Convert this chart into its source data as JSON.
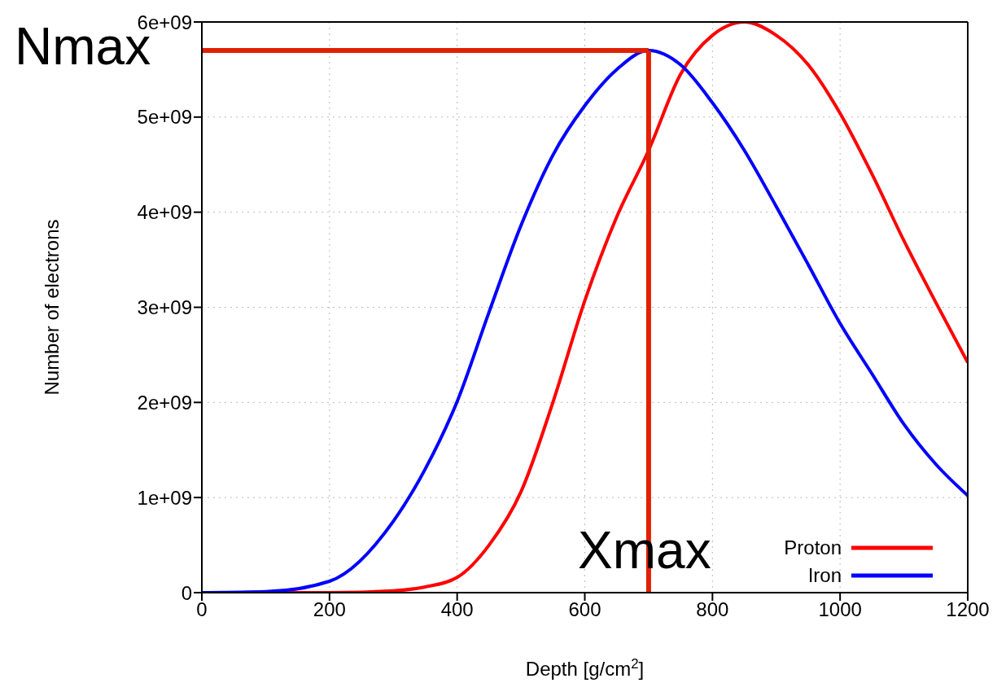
{
  "chart_data": {
    "type": "line",
    "xlabel": "Depth [g/cm$^{2}$]",
    "ylabel": "Number of electrons",
    "x": [
      0,
      100,
      200,
      300,
      350,
      400,
      450,
      500,
      550,
      600,
      650,
      700,
      750,
      800,
      850,
      900,
      950,
      1000,
      1050,
      1100,
      1150,
      1200
    ],
    "series": [
      {
        "name": "Proton",
        "color": "#ff0000",
        "values": [
          0,
          0,
          0,
          20000000.0,
          60000000.0,
          160000000.0,
          500000000.0,
          1060000000.0,
          2000000000.0,
          3070000000.0,
          3950000000.0,
          4650000000.0,
          5450000000.0,
          5860000000.0,
          6000000000.0,
          5860000000.0,
          5550000000.0,
          5040000000.0,
          4400000000.0,
          3700000000.0,
          3050000000.0,
          2420000000.0
        ]
      },
      {
        "name": "Iron",
        "color": "#0000ff",
        "values": [
          0,
          10000000.0,
          120000000.0,
          750000000.0,
          1300000000.0,
          2010000000.0,
          2950000000.0,
          3860000000.0,
          4600000000.0,
          5120000000.0,
          5500000000.0,
          5700000000.0,
          5550000000.0,
          5150000000.0,
          4650000000.0,
          4060000000.0,
          3450000000.0,
          2830000000.0,
          2300000000.0,
          1770000000.0,
          1350000000.0,
          1020000000.0
        ]
      }
    ],
    "xlim": [
      0,
      1200
    ],
    "xticks": [
      0,
      200,
      400,
      600,
      800,
      1000,
      1200
    ],
    "ylim": [
      0,
      6000000000
    ],
    "yticks": [
      0,
      {
        "value": 1000000000,
        "label": "1e+09"
      },
      {
        "value": 2000000000,
        "label": "2e+09"
      },
      {
        "value": 3000000000,
        "label": "3e+09"
      },
      {
        "value": 4000000000,
        "label": "4e+09"
      },
      {
        "value": 5000000000,
        "label": "5e+09"
      },
      {
        "value": 6000000000,
        "label": "6e+09"
      }
    ],
    "ref_lines": [
      {
        "axis": "y",
        "value": 5700000000,
        "label": "Nmax",
        "color": "#e02000"
      },
      {
        "axis": "x",
        "value": 700,
        "label": "Xmax",
        "color": "#e02000"
      }
    ],
    "grid": true,
    "legend": "bottom right",
    "marker": "none",
    "line_style": "solid"
  }
}
